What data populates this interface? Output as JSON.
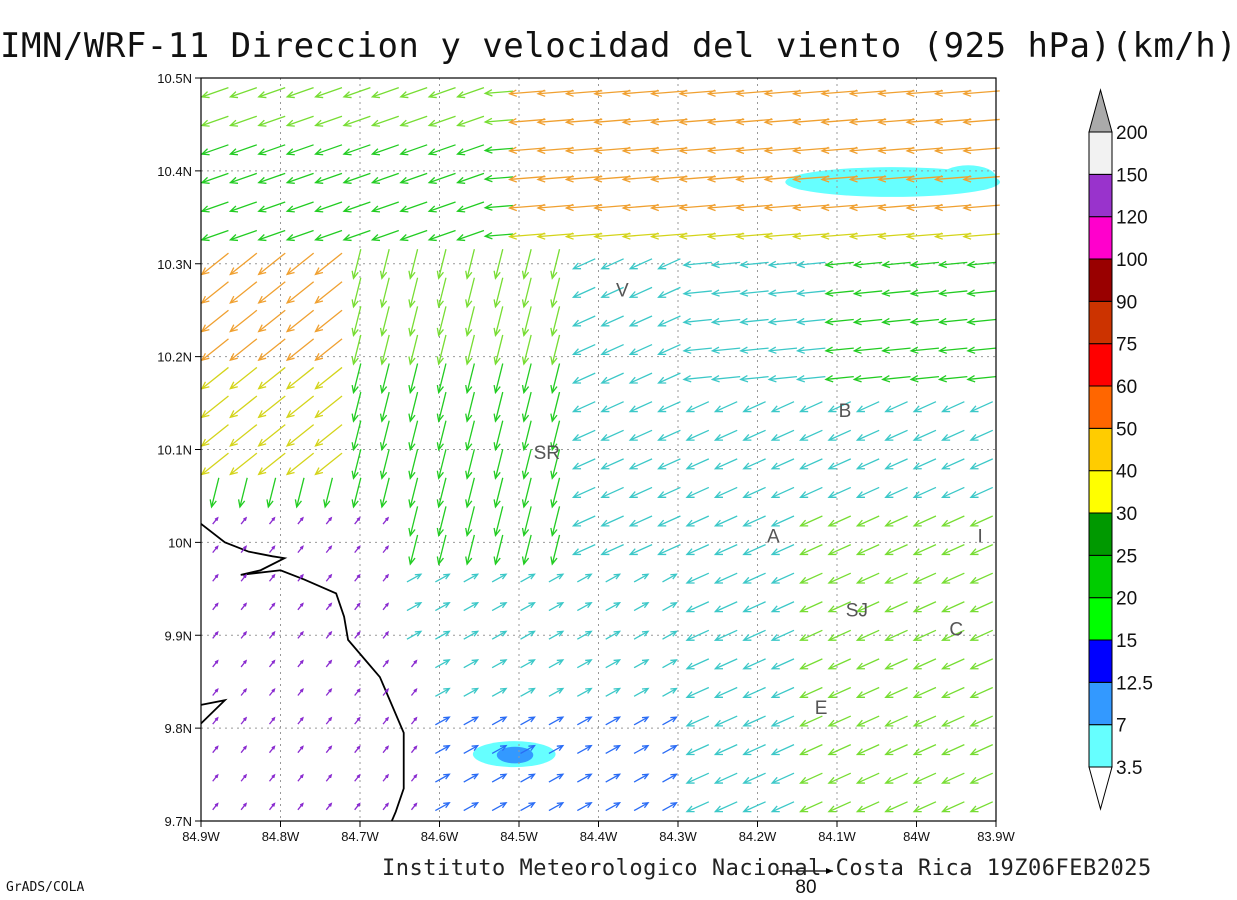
{
  "title": "IMN/WRF-11 Direccion y velocidad del viento (925 hPa)(km/h)",
  "credit": "Instituto Meteorologico Nacional Costa Rica 19Z06FEB2025",
  "software": "GrADS/COLA",
  "reference_vector_label": "80",
  "map": {
    "lon_range": [
      -84.9,
      -83.9
    ],
    "lat_range": [
      9.7,
      10.5
    ],
    "x_ticks": [
      {
        "value": -84.9,
        "label": "84.9W"
      },
      {
        "value": -84.8,
        "label": "84.8W"
      },
      {
        "value": -84.7,
        "label": "84.7W"
      },
      {
        "value": -84.6,
        "label": "84.6W"
      },
      {
        "value": -84.5,
        "label": "84.5W"
      },
      {
        "value": -84.4,
        "label": "84.4W"
      },
      {
        "value": -84.3,
        "label": "84.3W"
      },
      {
        "value": -84.2,
        "label": "84.2W"
      },
      {
        "value": -84.1,
        "label": "84.1W"
      },
      {
        "value": -84.0,
        "label": "84W"
      },
      {
        "value": -83.9,
        "label": "83.9W"
      }
    ],
    "y_ticks": [
      {
        "value": 10.5,
        "label": "10.5N"
      },
      {
        "value": 10.4,
        "label": "10.4N"
      },
      {
        "value": 10.3,
        "label": "10.3N"
      },
      {
        "value": 10.2,
        "label": "10.2N"
      },
      {
        "value": 10.1,
        "label": "10.1N"
      },
      {
        "value": 10.0,
        "label": "10N"
      },
      {
        "value": 9.9,
        "label": "9.9N"
      },
      {
        "value": 9.8,
        "label": "9.8N"
      },
      {
        "value": 9.7,
        "label": "9.7N"
      }
    ],
    "grid": true,
    "places": [
      {
        "label": "V",
        "lon": -84.37,
        "lat": 10.265
      },
      {
        "label": "SR",
        "lon": -84.465,
        "lat": 10.09
      },
      {
        "label": "B",
        "lon": -84.09,
        "lat": 10.135
      },
      {
        "label": "A",
        "lon": -84.18,
        "lat": 10.0
      },
      {
        "label": "I",
        "lon": -83.92,
        "lat": 10.0
      },
      {
        "label": "SJ",
        "lon": -84.075,
        "lat": 9.92
      },
      {
        "label": "C",
        "lon": -83.95,
        "lat": 9.9
      },
      {
        "label": "E",
        "lon": -84.12,
        "lat": 9.815
      }
    ],
    "coastline_lonlat": [
      [
        -84.9,
        10.02
      ],
      [
        -84.87,
        10.0
      ],
      [
        -84.84,
        9.99
      ],
      [
        -84.81,
        9.985
      ],
      [
        -84.795,
        9.983
      ],
      [
        -84.825,
        9.97
      ],
      [
        -84.85,
        9.965
      ],
      [
        -84.8,
        9.97
      ],
      [
        -84.77,
        9.96
      ],
      [
        -84.73,
        9.945
      ],
      [
        -84.72,
        9.92
      ],
      [
        -84.715,
        9.895
      ],
      [
        -84.69,
        9.87
      ],
      [
        -84.675,
        9.855
      ],
      [
        -84.66,
        9.825
      ],
      [
        -84.645,
        9.795
      ],
      [
        -84.645,
        9.765
      ],
      [
        -84.645,
        9.735
      ],
      [
        -84.655,
        9.71
      ],
      [
        -84.66,
        9.7
      ]
    ],
    "peninsula_lonlat": [
      [
        -84.9,
        9.825
      ],
      [
        -84.87,
        9.83
      ],
      [
        -84.9,
        9.805
      ]
    ],
    "shading_color": "#66ffff",
    "shading_dark_color": "#3399ff",
    "shaded_areas": [
      {
        "lon": -84.03,
        "lat": 10.388,
        "rx": 0.135,
        "ry": 0.016
      },
      {
        "lon": -83.935,
        "lat": 10.393,
        "rx": 0.035,
        "ry": 0.013
      },
      {
        "lon": -84.506,
        "lat": 9.772,
        "rx": 0.052,
        "ry": 0.014
      }
    ],
    "shaded_dark_areas": [
      {
        "lon": -84.505,
        "lat": 9.771,
        "rx": 0.023,
        "ry": 0.009
      }
    ]
  },
  "colorbar": {
    "labels": [
      "3.5",
      "7",
      "12.5",
      "15",
      "20",
      "25",
      "30",
      "40",
      "50",
      "60",
      "75",
      "90",
      "100",
      "120",
      "150",
      "200"
    ],
    "colors": [
      "#66ffff",
      "#3399ff",
      "#0000ff",
      "#00ff00",
      "#00cc00",
      "#009900",
      "#ffff00",
      "#ffcc00",
      "#ff6600",
      "#ff0000",
      "#cc3300",
      "#990000",
      "#ff00cc",
      "#9933cc",
      "#f2f2f2"
    ],
    "over_color": "#aaaaaa",
    "under_color": "#ffffff"
  }
}
